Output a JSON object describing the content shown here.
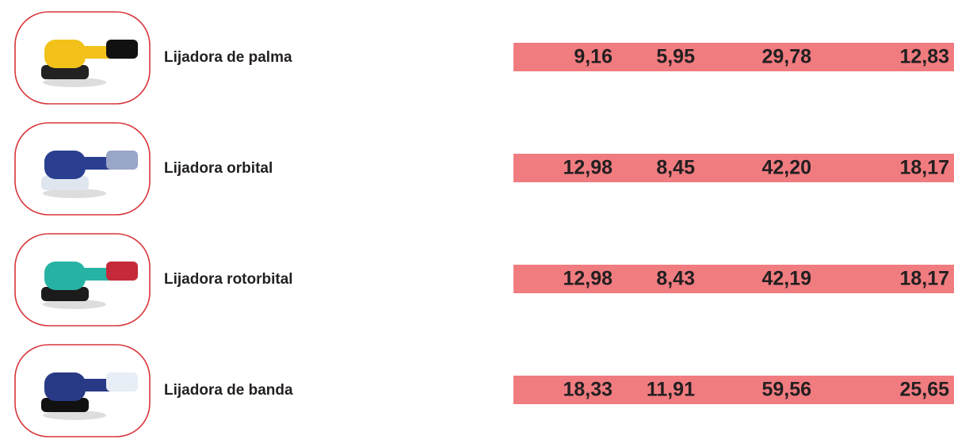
{
  "rows": [
    {
      "label": "Lijadora de palma",
      "values": [
        "9,16",
        "5,95",
        "29,78",
        "12,83"
      ]
    },
    {
      "label": "Lijadora orbital",
      "values": [
        "12,98",
        "8,45",
        "42,20",
        "18,17"
      ]
    },
    {
      "label": "Lijadora rotorbital",
      "values": [
        "12,98",
        "8,43",
        "42,19",
        "18,17"
      ]
    },
    {
      "label": "Lijadora de banda",
      "values": [
        "18,33",
        "11,91",
        "59,56",
        "25,65"
      ]
    }
  ]
}
